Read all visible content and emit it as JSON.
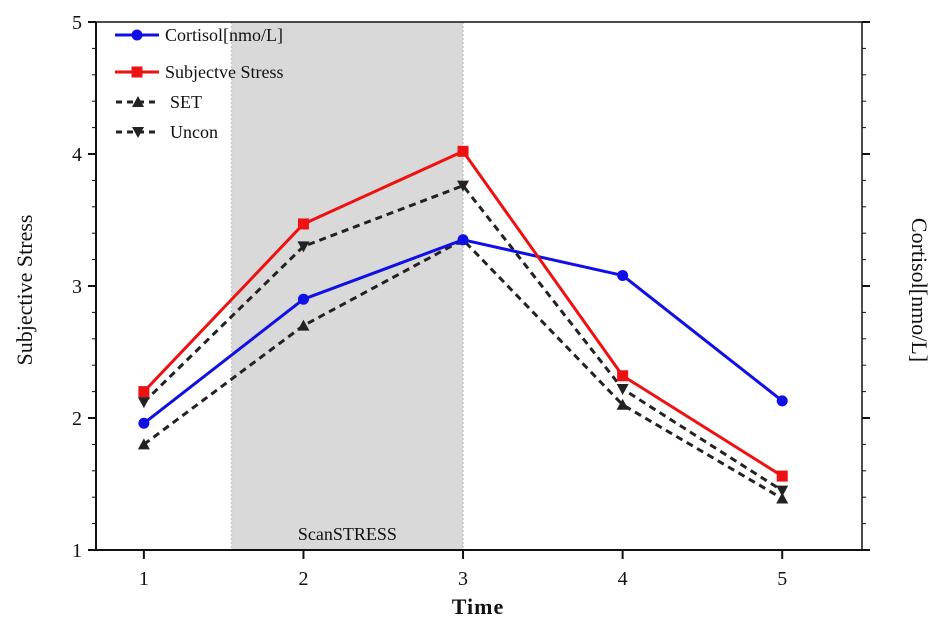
{
  "chart_data": {
    "type": "line",
    "xlabel": "Time",
    "ylabel_left": "Subjective Stress",
    "ylabel_right": "Cortisol[nmo/L]",
    "x_ticks": [
      "1",
      "2",
      "3",
      "4",
      "5"
    ],
    "y_ticks": [
      "1",
      "2",
      "3",
      "4",
      "5"
    ],
    "xlim": [
      0.7,
      5.5
    ],
    "ylim": [
      1,
      5
    ],
    "grid": false,
    "legend_position": "top-left",
    "shaded_region": {
      "x_start": 1.55,
      "x_end": 3.0,
      "label": "ScanSTRESS",
      "color": "#d9d9d9"
    },
    "x": [
      1,
      2,
      3,
      4,
      5
    ],
    "series": [
      {
        "name": "Cortisol[nmo/L]",
        "values": [
          1.96,
          2.9,
          3.35,
          3.08,
          2.13
        ],
        "color": "#1010e6",
        "dash": false,
        "marker": "circle"
      },
      {
        "name": "Subjectve Stress",
        "values": [
          2.2,
          3.47,
          4.02,
          2.32,
          1.56
        ],
        "color": "#ee1111",
        "dash": false,
        "marker": "square"
      },
      {
        "name": "SET",
        "values": [
          1.8,
          2.7,
          3.35,
          2.1,
          1.39
        ],
        "color": "#222222",
        "dash": true,
        "marker": "triangle-up"
      },
      {
        "name": "Uncon",
        "values": [
          2.12,
          3.3,
          3.76,
          2.22,
          1.45
        ],
        "color": "#222222",
        "dash": true,
        "marker": "triangle-down"
      }
    ]
  }
}
